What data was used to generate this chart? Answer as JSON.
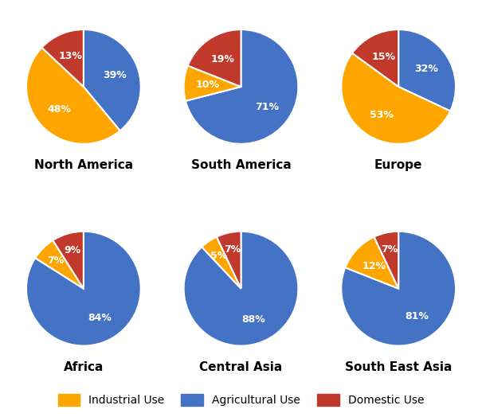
{
  "regions": [
    "North America",
    "South America",
    "Europe",
    "Africa",
    "Central Asia",
    "South East Asia"
  ],
  "data": {
    "North America": [
      39,
      48,
      13
    ],
    "South America": [
      71,
      10,
      19
    ],
    "Europe": [
      32,
      53,
      15
    ],
    "Africa": [
      84,
      7,
      9
    ],
    "Central Asia": [
      88,
      5,
      7
    ],
    "South East Asia": [
      81,
      12,
      7
    ]
  },
  "order": [
    "Agricultural",
    "Industrial",
    "Domestic"
  ],
  "colors": {
    "Agricultural": "#4472C4",
    "Industrial": "#FFA500",
    "Domestic": "#C0392B"
  },
  "colors_list": [
    "#4472C4",
    "#FFA500",
    "#C0392B"
  ],
  "start_angles": {
    "North America": 90,
    "South America": 90,
    "Europe": 90,
    "Africa": 90,
    "Central Asia": 90,
    "South East Asia": 90
  },
  "legend_labels": [
    "Industrial Use",
    "Agricultural Use",
    "Domestic Use"
  ],
  "legend_colors": [
    "#FFA500",
    "#4472C4",
    "#C0392B"
  ],
  "text_color": "white",
  "label_fontsize": 9,
  "title_fontsize": 11,
  "background_color": "#ffffff"
}
